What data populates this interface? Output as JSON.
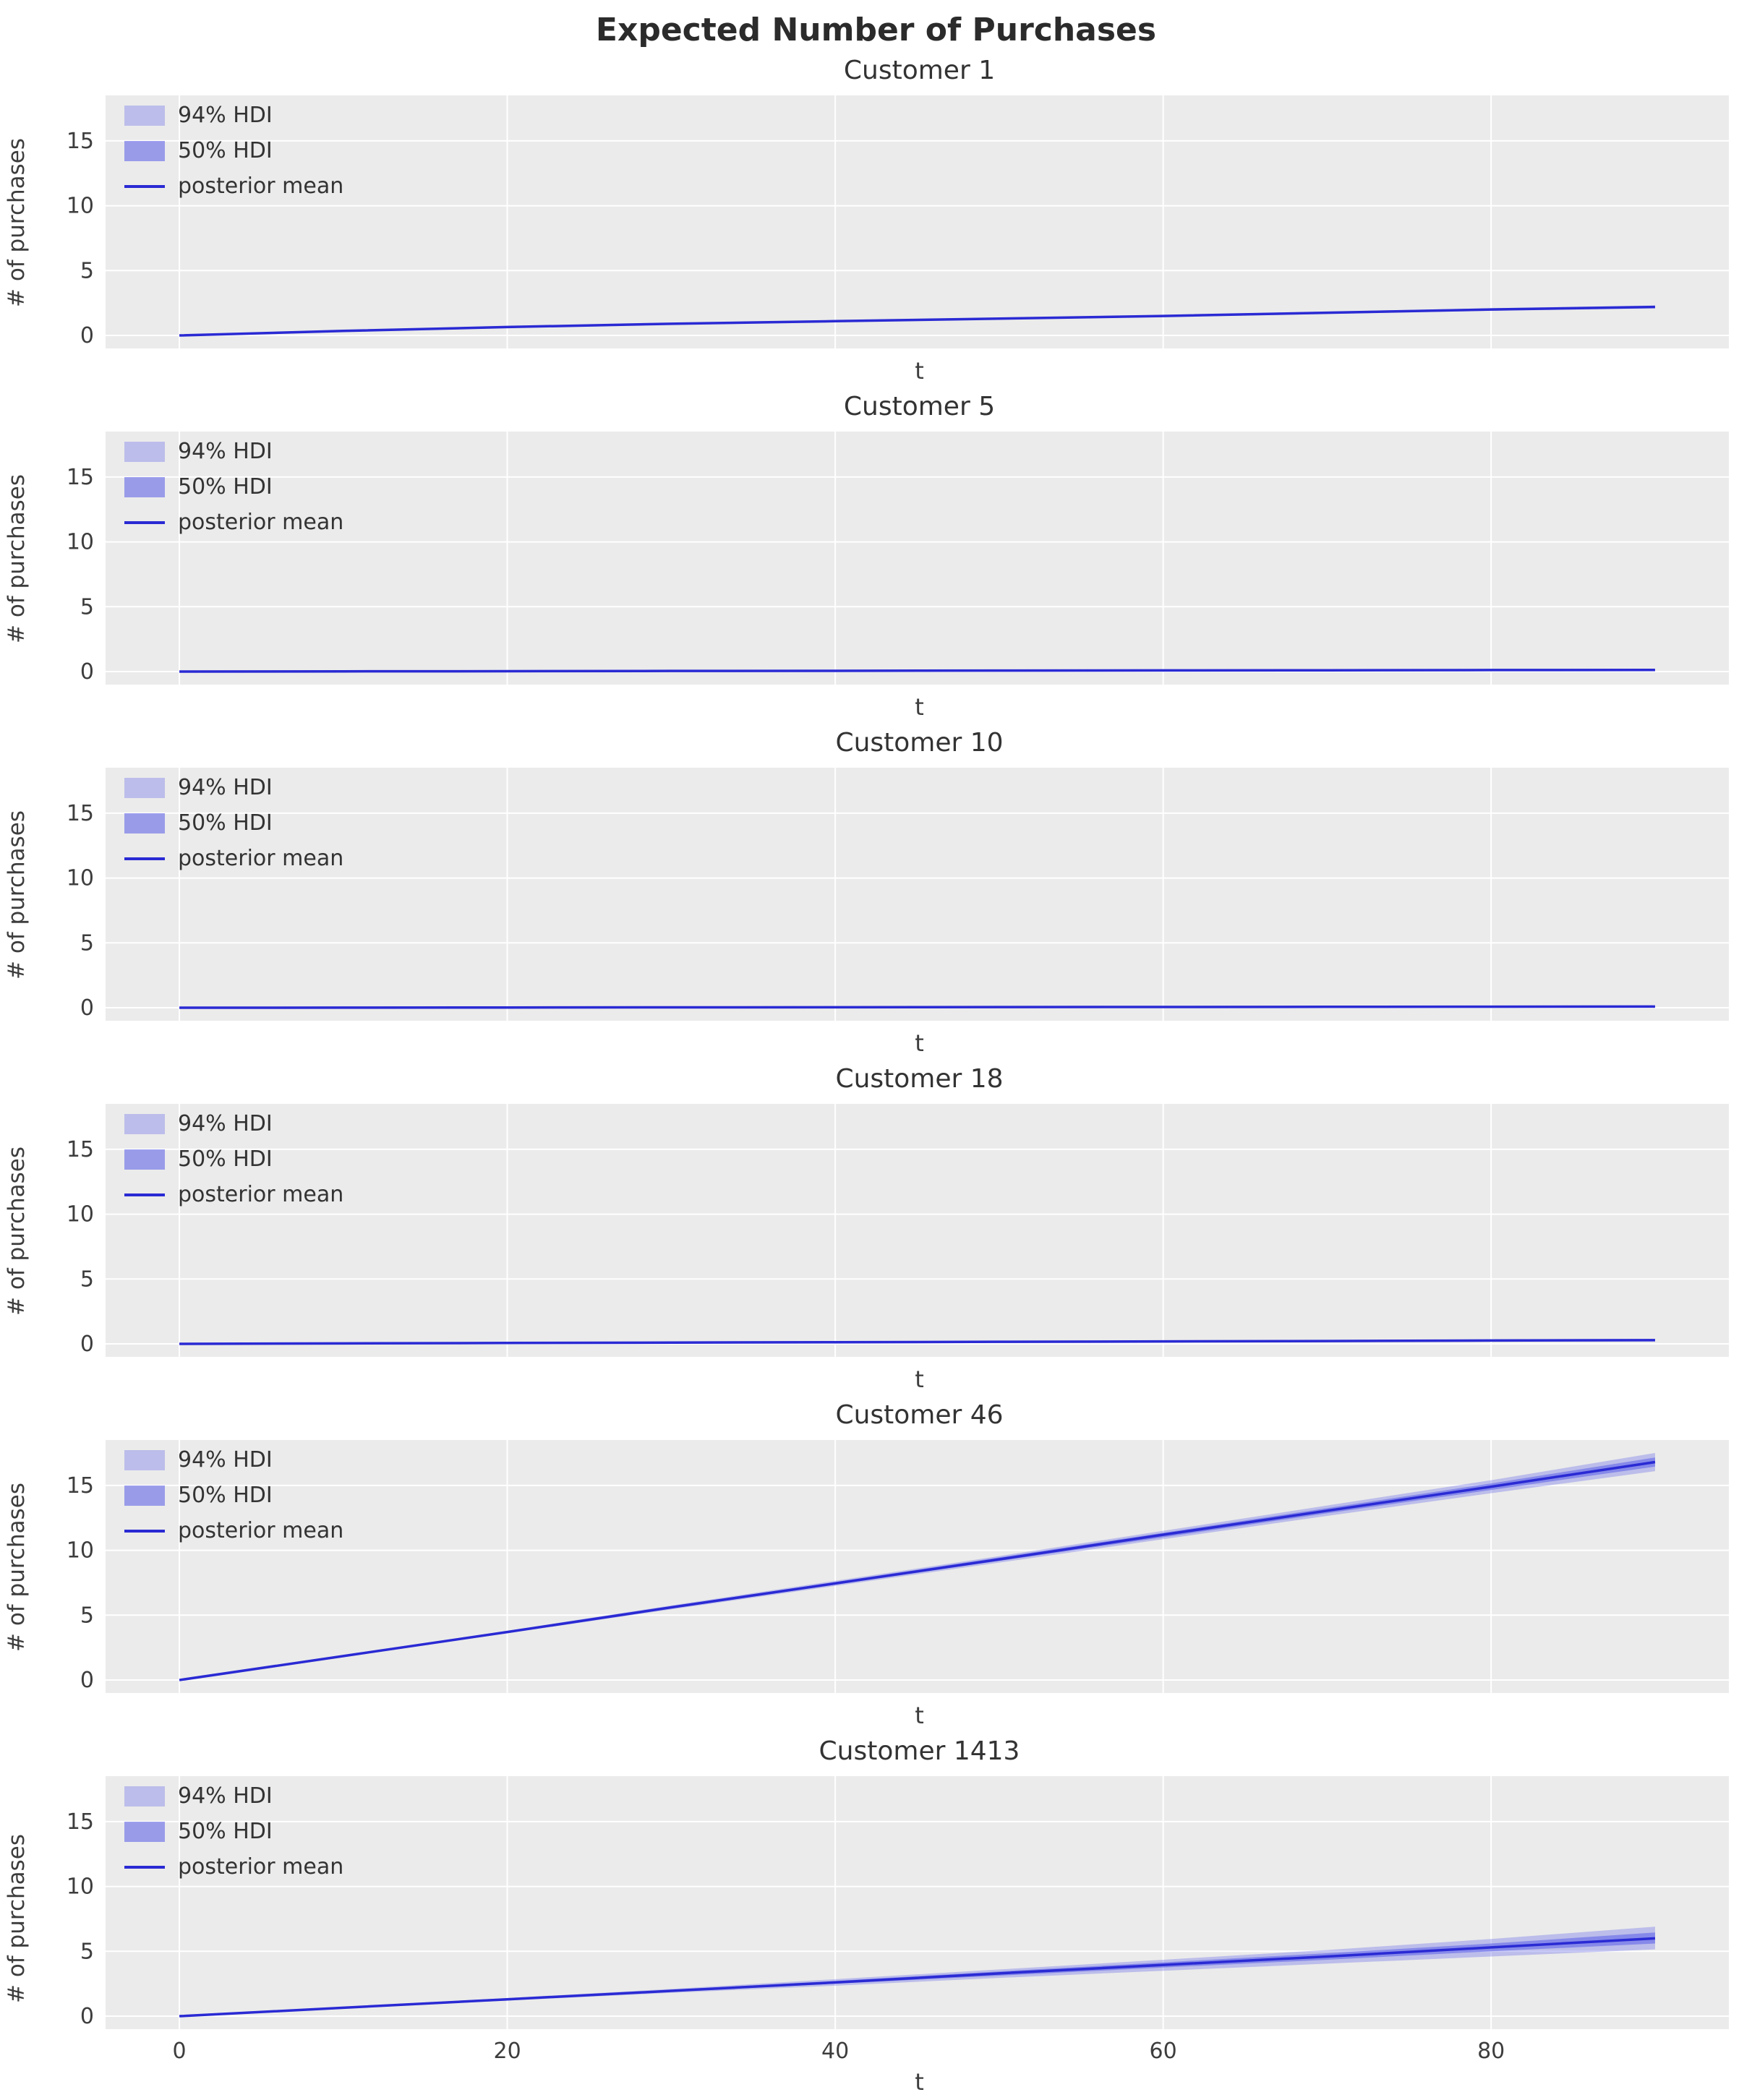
{
  "figure": {
    "title": "Expected Number of Purchases"
  },
  "axes": {
    "ylabel": "# of purchases",
    "xlabel": "t"
  },
  "legend": {
    "hdi94": "94% HDI",
    "hdi50": "50% HDI",
    "mean": "posterior mean"
  },
  "colors": {
    "panel": "#ebebeb",
    "grid": "#ffffff",
    "line": "#2a2ad4",
    "band94": "rgba(99,102,232,0.35)",
    "band50": "rgba(99,102,232,0.60)",
    "tick_text": "#3d3d3d"
  },
  "xticks": [
    0,
    20,
    40,
    60,
    80
  ],
  "yticks": [
    0,
    5,
    10,
    15
  ],
  "subplots": [
    {
      "title": "Customer 1",
      "chart_data": {
        "type": "line",
        "xlim": [
          -4.5,
          94.5
        ],
        "ylim": [
          -1.0,
          18.5
        ],
        "x": [
          0,
          10,
          20,
          30,
          40,
          50,
          60,
          70,
          80,
          90
        ],
        "mean": [
          0,
          0.35,
          0.65,
          0.9,
          1.1,
          1.3,
          1.5,
          1.75,
          2.0,
          2.2
        ],
        "hdi94_low": [
          0,
          0.33,
          0.61,
          0.85,
          1.04,
          1.23,
          1.42,
          1.66,
          1.9,
          2.08
        ],
        "hdi94_high": [
          0,
          0.37,
          0.69,
          0.95,
          1.16,
          1.37,
          1.58,
          1.84,
          2.1,
          2.32
        ],
        "hdi50_low": [
          0,
          0.34,
          0.63,
          0.87,
          1.07,
          1.27,
          1.46,
          1.7,
          1.95,
          2.14
        ],
        "hdi50_high": [
          0,
          0.36,
          0.67,
          0.93,
          1.13,
          1.33,
          1.54,
          1.8,
          2.05,
          2.27
        ]
      }
    },
    {
      "title": "Customer 5",
      "chart_data": {
        "type": "line",
        "xlim": [
          -4.5,
          94.5
        ],
        "ylim": [
          -1.0,
          18.5
        ],
        "x": [
          0,
          10,
          20,
          30,
          40,
          50,
          60,
          70,
          80,
          90
        ],
        "mean": [
          0,
          0.02,
          0.03,
          0.05,
          0.06,
          0.08,
          0.09,
          0.1,
          0.12,
          0.13
        ],
        "hdi94_low": [
          0,
          0.01,
          0.02,
          0.03,
          0.04,
          0.05,
          0.06,
          0.07,
          0.08,
          0.09
        ],
        "hdi94_high": [
          0,
          0.03,
          0.05,
          0.07,
          0.09,
          0.11,
          0.13,
          0.15,
          0.17,
          0.19
        ],
        "hdi50_low": [
          0,
          0.015,
          0.025,
          0.04,
          0.05,
          0.065,
          0.075,
          0.09,
          0.1,
          0.11
        ],
        "hdi50_high": [
          0,
          0.025,
          0.04,
          0.06,
          0.075,
          0.09,
          0.11,
          0.12,
          0.14,
          0.16
        ]
      }
    },
    {
      "title": "Customer 10",
      "chart_data": {
        "type": "line",
        "xlim": [
          -4.5,
          94.5
        ],
        "ylim": [
          -1.0,
          18.5
        ],
        "x": [
          0,
          10,
          20,
          30,
          40,
          50,
          60,
          70,
          80,
          90
        ],
        "mean": [
          0,
          0.01,
          0.02,
          0.03,
          0.04,
          0.05,
          0.06,
          0.07,
          0.08,
          0.09
        ],
        "hdi94_low": [
          0,
          0.005,
          0.01,
          0.015,
          0.02,
          0.025,
          0.03,
          0.035,
          0.04,
          0.05
        ],
        "hdi94_high": [
          0,
          0.02,
          0.04,
          0.05,
          0.07,
          0.08,
          0.1,
          0.11,
          0.13,
          0.14
        ],
        "hdi50_low": [
          0,
          0.008,
          0.015,
          0.022,
          0.03,
          0.038,
          0.045,
          0.052,
          0.06,
          0.07
        ],
        "hdi50_high": [
          0,
          0.015,
          0.03,
          0.04,
          0.055,
          0.065,
          0.08,
          0.09,
          0.1,
          0.12
        ]
      }
    },
    {
      "title": "Customer 18",
      "chart_data": {
        "type": "line",
        "xlim": [
          -4.5,
          94.5
        ],
        "ylim": [
          -1.0,
          18.5
        ],
        "x": [
          0,
          10,
          20,
          30,
          40,
          50,
          60,
          70,
          80,
          90
        ],
        "mean": [
          0,
          0.04,
          0.07,
          0.1,
          0.13,
          0.16,
          0.19,
          0.22,
          0.26,
          0.29
        ],
        "hdi94_low": [
          0,
          0.02,
          0.04,
          0.06,
          0.08,
          0.1,
          0.12,
          0.14,
          0.17,
          0.19
        ],
        "hdi94_high": [
          0,
          0.06,
          0.1,
          0.14,
          0.18,
          0.22,
          0.26,
          0.3,
          0.35,
          0.39
        ],
        "hdi50_low": [
          0,
          0.03,
          0.055,
          0.08,
          0.105,
          0.13,
          0.155,
          0.18,
          0.215,
          0.24
        ],
        "hdi50_high": [
          0,
          0.05,
          0.085,
          0.12,
          0.155,
          0.19,
          0.225,
          0.26,
          0.305,
          0.34
        ]
      }
    },
    {
      "title": "Customer 46",
      "chart_data": {
        "type": "line",
        "xlim": [
          -4.5,
          94.5
        ],
        "ylim": [
          -1.0,
          18.5
        ],
        "x": [
          0,
          10,
          20,
          30,
          40,
          50,
          60,
          70,
          80,
          90
        ],
        "mean": [
          0,
          1.85,
          3.7,
          5.6,
          7.45,
          9.3,
          11.2,
          13.05,
          14.9,
          16.8
        ],
        "hdi94_low": [
          0,
          1.8,
          3.6,
          5.45,
          7.25,
          9.05,
          10.85,
          12.65,
          14.4,
          16.1
        ],
        "hdi94_high": [
          0,
          1.9,
          3.8,
          5.75,
          7.65,
          9.55,
          11.5,
          13.45,
          15.4,
          17.5
        ],
        "hdi50_low": [
          0,
          1.82,
          3.65,
          5.52,
          7.35,
          9.18,
          11.0,
          12.85,
          14.65,
          16.45
        ],
        "hdi50_high": [
          0,
          1.88,
          3.75,
          5.68,
          7.55,
          9.45,
          11.35,
          13.25,
          15.15,
          17.15
        ]
      }
    },
    {
      "title": "Customer 1413",
      "chart_data": {
        "type": "line",
        "xlim": [
          -4.5,
          94.5
        ],
        "ylim": [
          -1.0,
          18.5
        ],
        "x": [
          0,
          10,
          20,
          30,
          40,
          50,
          60,
          70,
          80,
          90
        ],
        "mean": [
          0,
          0.65,
          1.3,
          1.95,
          2.6,
          3.3,
          3.95,
          4.6,
          5.3,
          6.0
        ],
        "hdi94_low": [
          0,
          0.6,
          1.2,
          1.8,
          2.35,
          2.95,
          3.5,
          4.05,
          4.6,
          5.15
        ],
        "hdi94_high": [
          0,
          0.7,
          1.4,
          2.1,
          2.85,
          3.6,
          4.35,
          5.1,
          5.95,
          6.9
        ],
        "hdi50_low": [
          0,
          0.62,
          1.25,
          1.88,
          2.5,
          3.12,
          3.75,
          4.35,
          5.0,
          5.6
        ],
        "hdi50_high": [
          0,
          0.68,
          1.35,
          2.03,
          2.72,
          3.45,
          4.15,
          4.85,
          5.6,
          6.45
        ]
      }
    }
  ]
}
